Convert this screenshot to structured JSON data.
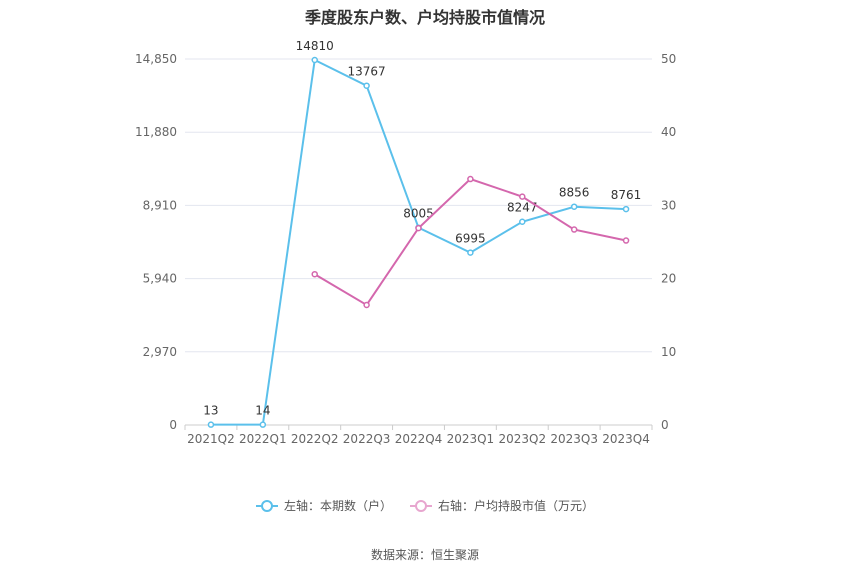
{
  "chart_data": {
    "type": "line",
    "title": "季度股东户数、户均持股市值情况",
    "categories": [
      "2021Q2",
      "2022Q1",
      "2022Q2",
      "2022Q3",
      "2022Q4",
      "2023Q1",
      "2023Q2",
      "2023Q3",
      "2023Q4"
    ],
    "y_left": {
      "ticks": [
        "0",
        "2,970",
        "5,940",
        "8,910",
        "11,880",
        "14,850"
      ],
      "ylim": [
        0,
        14850
      ]
    },
    "y_right": {
      "ticks": [
        "0",
        "10",
        "20",
        "30",
        "40",
        "50"
      ],
      "ylim": [
        0,
        50
      ]
    },
    "grid": true,
    "legend_position": "bottom",
    "series": [
      {
        "name": "左轴：本期数（户）",
        "axis": "left",
        "color": "#5bc0eb",
        "values": [
          13,
          14,
          14810,
          13767,
          8005,
          6995,
          8247,
          8856,
          8761
        ],
        "labels": [
          "13",
          "14",
          "14810",
          "13767",
          "8005",
          "6995",
          "8247",
          "8856",
          "8761"
        ]
      },
      {
        "name": "右轴：户均持股市值（万元）",
        "axis": "right",
        "color": "#d467ad",
        "values": [
          null,
          null,
          20.6,
          16.4,
          26.9,
          33.6,
          31.2,
          26.7,
          25.2
        ]
      }
    ]
  },
  "source": "数据来源：恒生聚源"
}
